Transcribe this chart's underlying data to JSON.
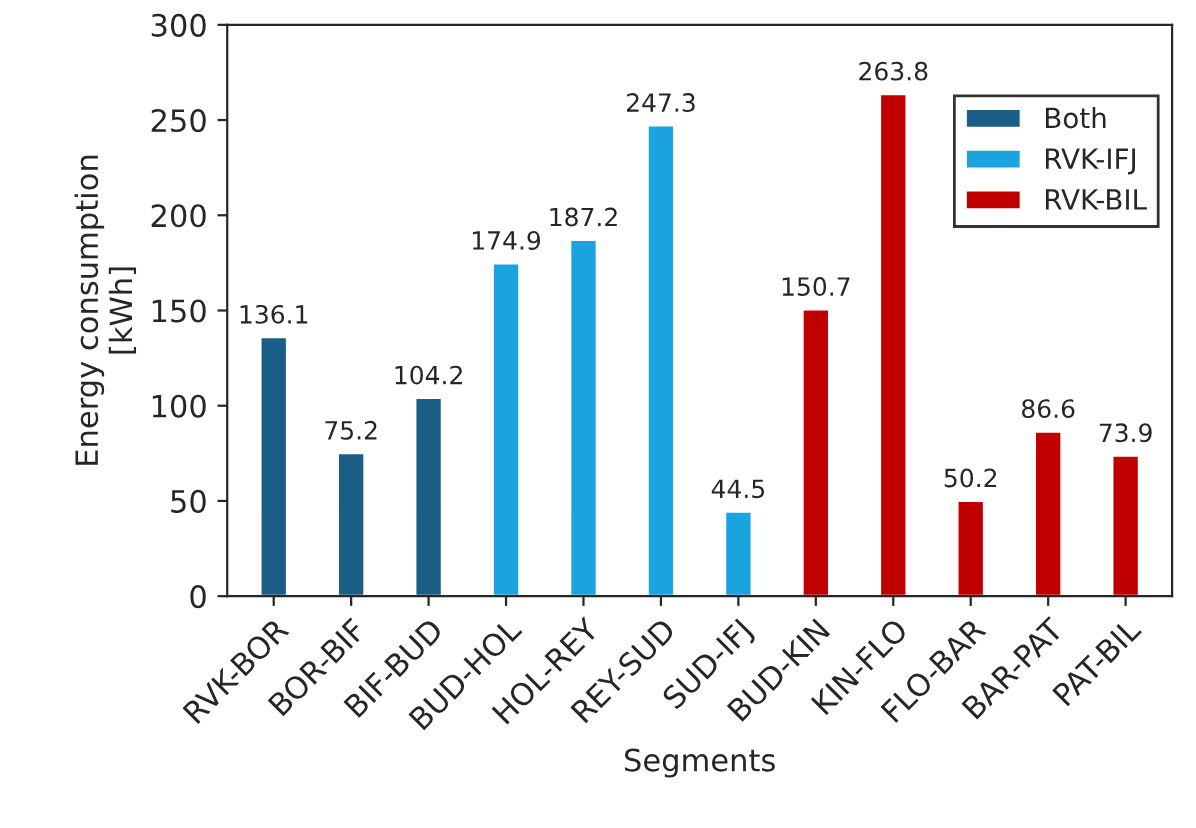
{
  "chart_data": {
    "type": "bar",
    "xlabel": "Segments",
    "ylabel": "Energy consumption\n[kWh]",
    "categories": [
      "RVK-BOR",
      "BOR-BIF",
      "BIF-BUD",
      "BUD-HOL",
      "HOL-REY",
      "REY-SUD",
      "SUD-IFJ",
      "BUD-KIN",
      "KIN-FLO",
      "FLO-BAR",
      "BAR-PAT",
      "PAT-BIL"
    ],
    "series": [
      {
        "name": "Both",
        "color": "#1a5e85",
        "values": [
          136.1,
          75.2,
          104.2,
          null,
          null,
          null,
          null,
          null,
          null,
          null,
          null,
          null
        ]
      },
      {
        "name": "RVK-IFJ",
        "color": "#1aa3dc",
        "values": [
          null,
          null,
          null,
          174.9,
          187.2,
          247.3,
          44.5,
          null,
          null,
          null,
          null,
          null
        ]
      },
      {
        "name": "RVK-BIL",
        "color": "#c00000",
        "values": [
          null,
          null,
          null,
          null,
          null,
          null,
          null,
          150.7,
          263.8,
          50.2,
          86.6,
          73.9
        ]
      }
    ],
    "ylim": [
      0,
      300
    ],
    "yticks": [
      0,
      50,
      100,
      150,
      200,
      250,
      300
    ],
    "data_labels": true,
    "legend": "top right",
    "grid": false
  }
}
